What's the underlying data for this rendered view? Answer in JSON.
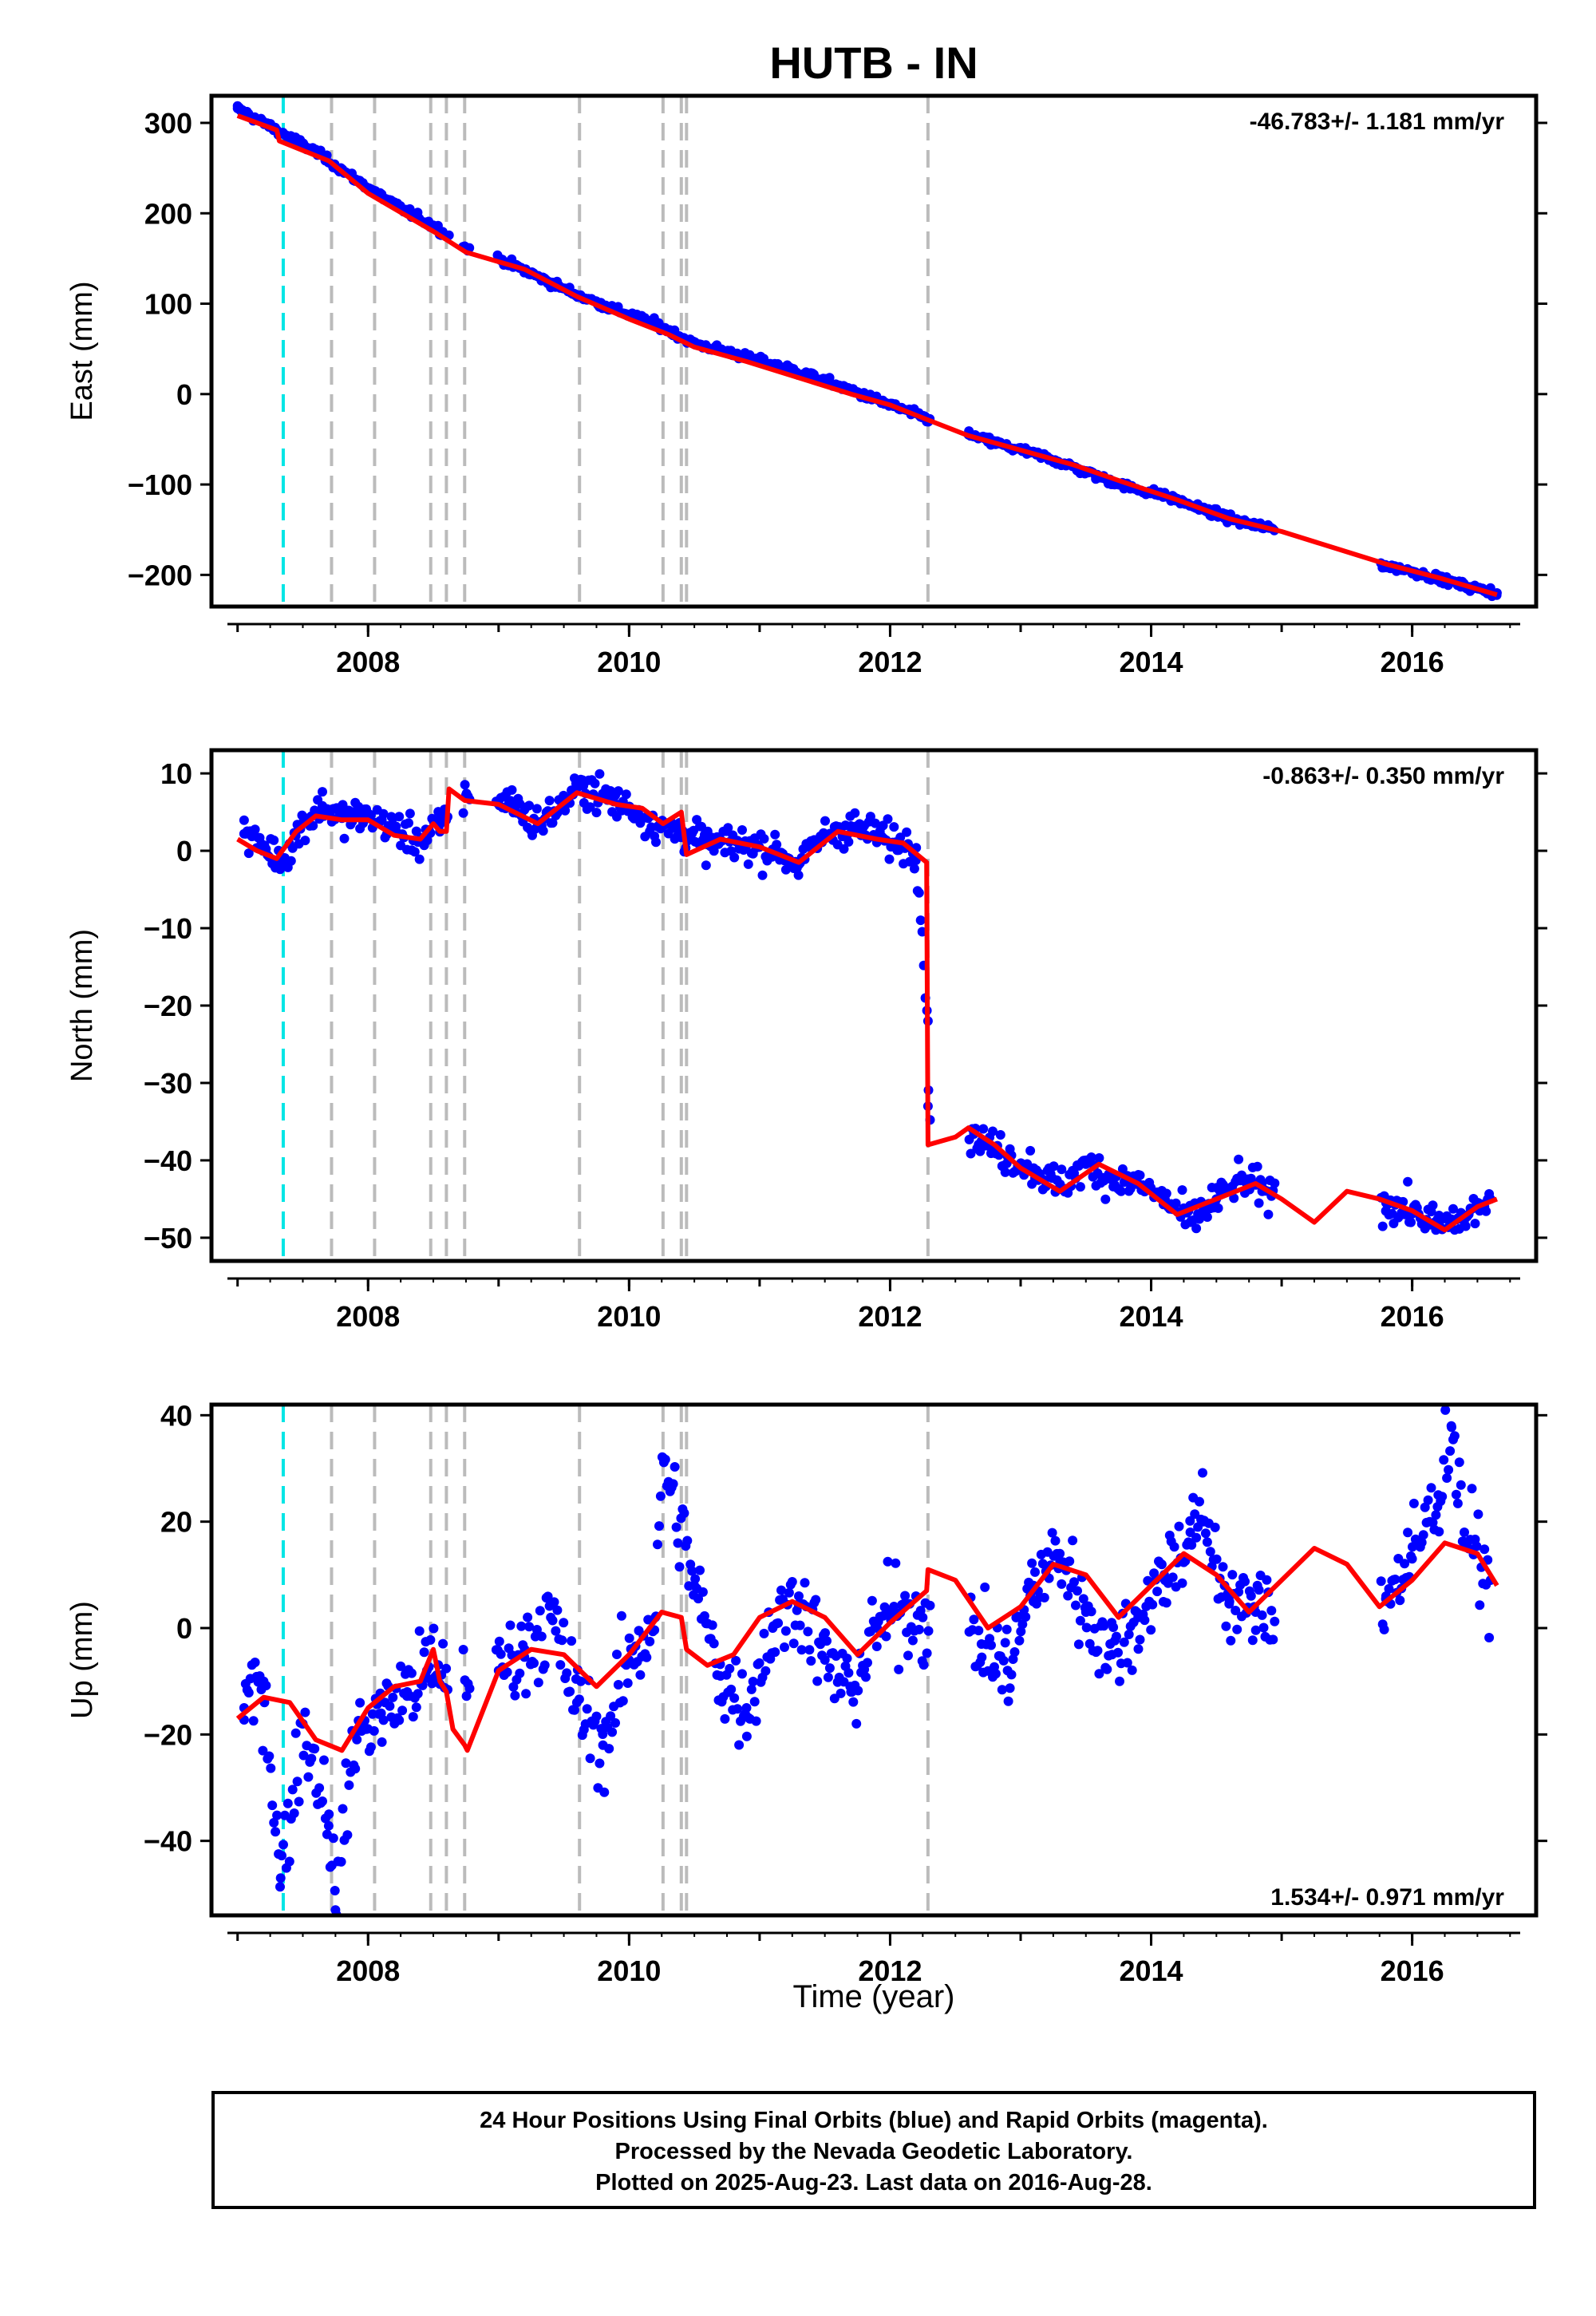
{
  "chart_data": [
    {
      "type": "scatter",
      "title": "HUTB - IN",
      "ylabel": "East (mm)",
      "xlim": [
        2006.8,
        2016.95
      ],
      "ylim": [
        -235,
        330
      ],
      "yticks": [
        300,
        200,
        100,
        0,
        -100,
        -200
      ],
      "xticks": [
        2008,
        2010,
        2012,
        2014,
        2016
      ],
      "rate_label": "-46.783+/- 1.181 mm/yr",
      "series": [
        {
          "name": "",
          "color": "#0000ff",
          "x": [
            2007.0,
            2007.3,
            2007.6,
            2007.9,
            2008.2,
            2008.5,
            2008.75,
            2009.0,
            2009.3,
            2009.6,
            2009.9,
            2010.2,
            2010.5,
            2010.8,
            2011.1,
            2011.4,
            2011.7,
            2012.0,
            2012.25,
            2012.6,
            2012.9,
            2013.2,
            2013.5,
            2013.8,
            2014.1,
            2014.4,
            2014.7,
            2014.9,
            2015.8,
            2016.0,
            2016.2,
            2016.4,
            2016.65
          ],
          "y": [
            316,
            292,
            268,
            238,
            210,
            186,
            162,
            150,
            130,
            110,
            93,
            78,
            56,
            45,
            33,
            20,
            4,
            -12,
            -25,
            -45,
            -58,
            -70,
            -86,
            -102,
            -112,
            -128,
            -142,
            -148,
            -190,
            -196,
            -204,
            -212,
            -220
          ]
        },
        {
          "name": "",
          "color": "#ff0000",
          "x": [
            2007.0,
            2007.3,
            2007.32,
            2007.7,
            2008.0,
            2008.5,
            2008.75,
            2009.2,
            2009.6,
            2010.0,
            2010.3,
            2010.5,
            2010.9,
            2011.3,
            2011.7,
            2012.0,
            2012.28,
            2012.6,
            2013.0,
            2013.4,
            2013.8,
            2014.2,
            2014.6,
            2015.0,
            2015.4,
            2015.8,
            2016.2,
            2016.65
          ],
          "y": [
            308,
            292,
            280,
            258,
            222,
            180,
            157,
            138,
            108,
            83,
            66,
            52,
            36,
            18,
            0,
            -12,
            -28,
            -46,
            -62,
            -78,
            -98,
            -117,
            -138,
            -152,
            -170,
            -188,
            -203,
            -222
          ]
        }
      ],
      "event_lines": {
        "cyan": [
          2007.35
        ],
        "gray": [
          2007.72,
          2008.05,
          2008.48,
          2008.6,
          2008.74,
          2009.62,
          2010.26,
          2010.4,
          2010.44,
          2012.29
        ]
      }
    },
    {
      "type": "scatter",
      "ylabel": "North (mm)",
      "xlim": [
        2006.8,
        2016.95
      ],
      "ylim": [
        -53,
        13
      ],
      "yticks": [
        10,
        0,
        -10,
        -20,
        -30,
        -40,
        -50
      ],
      "xticks": [
        2008,
        2010,
        2012,
        2014,
        2016
      ],
      "rate_label": "-0.863+/- 0.350 mm/yr",
      "series": [
        {
          "name": "",
          "color": "#0000ff",
          "x": [
            2007.05,
            2007.2,
            2007.35,
            2007.5,
            2007.65,
            2007.8,
            2008.0,
            2008.2,
            2008.4,
            2008.55,
            2008.75,
            2009.1,
            2009.3,
            2009.5,
            2009.65,
            2009.85,
            2010.05,
            2010.25,
            2010.45,
            2010.6,
            2010.85,
            2011.1,
            2011.3,
            2011.5,
            2011.7,
            2011.95,
            2012.2,
            2012.29,
            2012.29,
            2012.7,
            2012.9,
            2013.1,
            2013.3,
            2013.5,
            2013.7,
            2013.9,
            2014.1,
            2014.3,
            2014.5,
            2014.7,
            2014.85,
            2015.8,
            2016.0,
            2016.2,
            2016.4,
            2016.6
          ],
          "y": [
            2.2,
            0.5,
            -1.2,
            3.5,
            5.8,
            4.2,
            4.5,
            3.0,
            1.2,
            3.4,
            7.2,
            6.4,
            3.3,
            6.2,
            8.4,
            6.6,
            5.2,
            3.0,
            2.2,
            0.8,
            0.9,
            0.2,
            -1.8,
            2.0,
            3.2,
            1.6,
            0.4,
            -22.0,
            -33.0,
            -37.5,
            -39.5,
            -41.0,
            -43.5,
            -40.5,
            -42.5,
            -43.0,
            -45.0,
            -48.0,
            -45.0,
            -42.5,
            -44.0,
            -45.5,
            -46.5,
            -48.5,
            -47.5,
            -45.0
          ]
        },
        {
          "name": "",
          "color": "#ff0000",
          "x": [
            2007.0,
            2007.15,
            2007.3,
            2007.45,
            2007.6,
            2007.8,
            2008.0,
            2008.2,
            2008.4,
            2008.5,
            2008.55,
            2008.6,
            2008.62,
            2008.74,
            2009.0,
            2009.3,
            2009.6,
            2009.9,
            2010.1,
            2010.26,
            2010.4,
            2010.44,
            2010.7,
            2011.0,
            2011.3,
            2011.6,
            2011.9,
            2012.1,
            2012.28,
            2012.29,
            2012.5,
            2012.6,
            2012.8,
            2013.0,
            2013.3,
            2013.6,
            2013.9,
            2014.2,
            2014.5,
            2014.8,
            2015.0,
            2015.25,
            2015.5,
            2015.75,
            2016.0,
            2016.25,
            2016.5,
            2016.65
          ],
          "y": [
            1.5,
            0.0,
            -1.0,
            2.5,
            4.5,
            4.0,
            4.0,
            2.0,
            1.5,
            3.5,
            2.5,
            2.5,
            8.0,
            6.5,
            6.0,
            3.5,
            7.5,
            6.0,
            5.5,
            3.5,
            5.0,
            -0.5,
            1.5,
            0.5,
            -1.5,
            2.5,
            1.5,
            1.0,
            -1.5,
            -38.0,
            -37.0,
            -35.8,
            -38.0,
            -41.0,
            -44.0,
            -40.5,
            -43.0,
            -47.0,
            -45.0,
            -43.0,
            -45.0,
            -48.0,
            -44.0,
            -45.0,
            -46.5,
            -49.0,
            -46.0,
            -45.0
          ]
        }
      ],
      "event_lines": {
        "cyan": [
          2007.35
        ],
        "gray": [
          2007.72,
          2008.05,
          2008.48,
          2008.6,
          2008.74,
          2009.62,
          2010.26,
          2010.4,
          2010.44,
          2012.29
        ]
      }
    },
    {
      "type": "scatter",
      "ylabel": "Up (mm)",
      "xlabel": "Time (year)",
      "xlim": [
        2006.8,
        2016.95
      ],
      "ylim": [
        -54,
        42
      ],
      "yticks": [
        40,
        20,
        0,
        -20,
        -40
      ],
      "xticks": [
        2008,
        2010,
        2012,
        2014,
        2016
      ],
      "rate_label": "1.534+/- 0.971 mm/yr",
      "series": [
        {
          "name": "",
          "color": "#0000ff",
          "x": [
            2007.05,
            2007.2,
            2007.33,
            2007.5,
            2007.7,
            2007.75,
            2007.9,
            2008.1,
            2008.3,
            2008.45,
            2009.0,
            2009.2,
            2009.4,
            2009.6,
            2009.8,
            2010.0,
            2010.2,
            2010.26,
            2010.5,
            2010.7,
            2010.9,
            2011.1,
            2011.3,
            2011.5,
            2011.7,
            2011.9,
            2012.1,
            2012.25,
            2012.7,
            2012.9,
            2013.1,
            2013.3,
            2013.5,
            2013.7,
            2013.9,
            2014.1,
            2014.3,
            2014.4,
            2014.6,
            2014.8,
            2015.8,
            2016.0,
            2016.2,
            2016.3,
            2016.4,
            2016.6
          ],
          "y": [
            -15,
            -10,
            -47,
            -18,
            -35,
            -53,
            -20,
            -16,
            -12,
            -8,
            -8,
            -4,
            2,
            -14,
            -22,
            -6,
            2,
            32,
            8,
            -9,
            -15,
            0,
            6,
            -6,
            -12,
            0,
            4,
            2,
            -3,
            -8,
            8,
            14,
            3,
            -5,
            2,
            10,
            18,
            20,
            5,
            3,
            6,
            13,
            25,
            38,
            18,
            9
          ]
        },
        {
          "name": "",
          "color": "#ff0000",
          "x": [
            2007.0,
            2007.2,
            2007.4,
            2007.6,
            2007.8,
            2008.0,
            2008.2,
            2008.4,
            2008.5,
            2008.55,
            2008.6,
            2008.65,
            2008.74,
            2008.76,
            2009.0,
            2009.25,
            2009.5,
            2009.75,
            2010.0,
            2010.25,
            2010.4,
            2010.44,
            2010.6,
            2010.8,
            2011.0,
            2011.25,
            2011.5,
            2011.75,
            2012.0,
            2012.28,
            2012.29,
            2012.5,
            2012.75,
            2013.0,
            2013.25,
            2013.5,
            2013.75,
            2014.0,
            2014.25,
            2014.5,
            2014.75,
            2015.0,
            2015.25,
            2015.5,
            2015.75,
            2016.0,
            2016.25,
            2016.5,
            2016.65
          ],
          "y": [
            -17,
            -13,
            -14,
            -21,
            -23,
            -15,
            -11,
            -10,
            -4,
            -10,
            -12,
            -19,
            -22,
            -23,
            -8,
            -4,
            -5,
            -11,
            -5,
            3,
            2,
            -4,
            -7,
            -5,
            2,
            5,
            2,
            -5,
            1,
            7,
            11,
            9,
            0,
            4,
            12,
            10,
            2,
            8,
            14,
            10,
            3,
            9,
            15,
            12,
            4,
            9,
            16,
            14,
            8
          ]
        }
      ],
      "event_lines": {
        "cyan": [
          2007.35
        ],
        "gray": [
          2007.72,
          2008.05,
          2008.48,
          2008.6,
          2008.74,
          2009.62,
          2010.26,
          2010.4,
          2010.44,
          2012.29
        ]
      }
    }
  ],
  "colors": {
    "final_orbits": "#0000ff",
    "model": "#ff0000",
    "cyan_event": "#00e5e5",
    "gray_event": "#bbbbbb"
  },
  "caption": {
    "line1": "24 Hour Positions Using Final Orbits (blue) and Rapid Orbits (magenta).",
    "line2": "Processed by the Nevada Geodetic Laboratory.",
    "line3": "Plotted on 2025-Aug-23. Last data on 2016-Aug-28."
  }
}
